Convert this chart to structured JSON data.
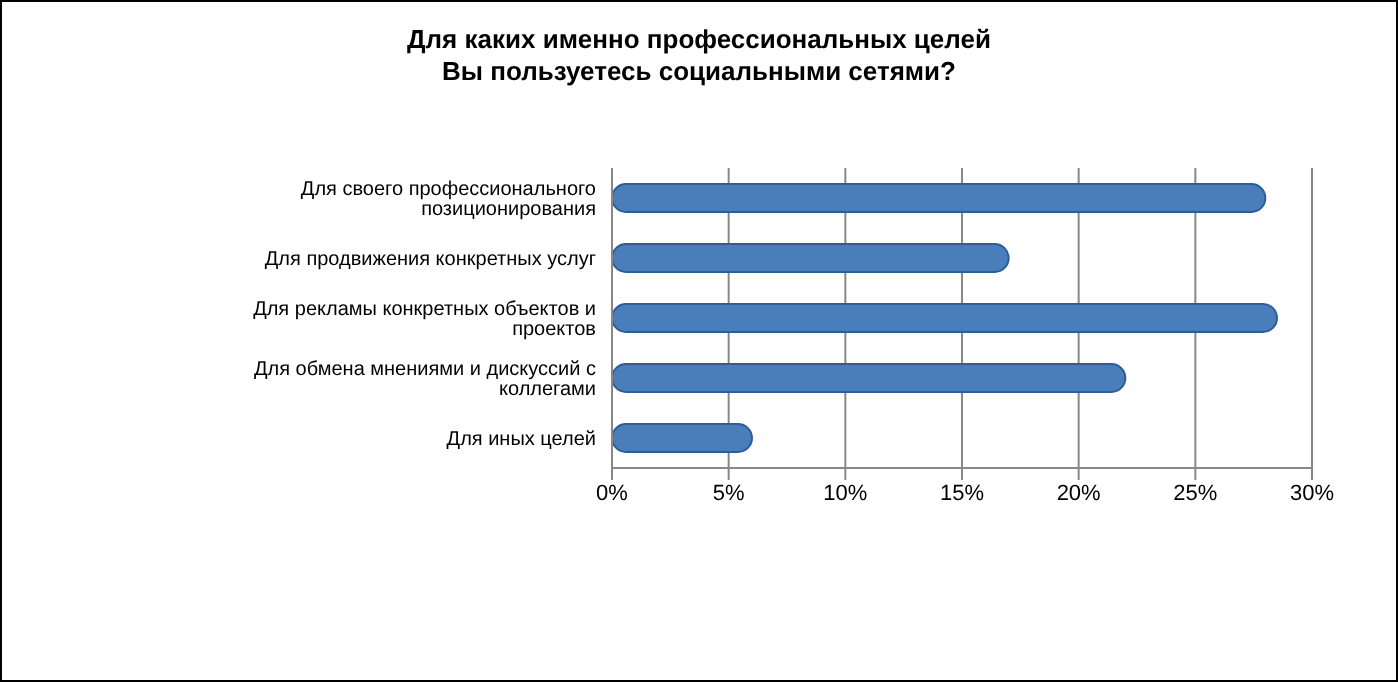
{
  "chart_data": {
    "type": "bar",
    "orientation": "horizontal",
    "title": "Для каких именно профессиональных целей\nВы пользуетесь социальными сетями?",
    "categories": [
      "Для своего профессионального позиционирования",
      "Для продвижения конкретных услуг",
      "Для рекламы конкретных объектов и проектов",
      "Для обмена мнениями и дискуссий с коллегами",
      "Для иных целей"
    ],
    "values": [
      28,
      17,
      28.5,
      22,
      6
    ],
    "color": "#4a7ebb",
    "xlim": [
      0,
      30
    ],
    "xticks": [
      {
        "value": 0,
        "label": "0%"
      },
      {
        "value": 5,
        "label": "5%"
      },
      {
        "value": 10,
        "label": "10%"
      },
      {
        "value": 15,
        "label": "15%"
      },
      {
        "value": 20,
        "label": "20%"
      },
      {
        "value": 25,
        "label": "25%"
      },
      {
        "value": 30,
        "label": "30%"
      }
    ],
    "grid": "x",
    "legend": false
  }
}
